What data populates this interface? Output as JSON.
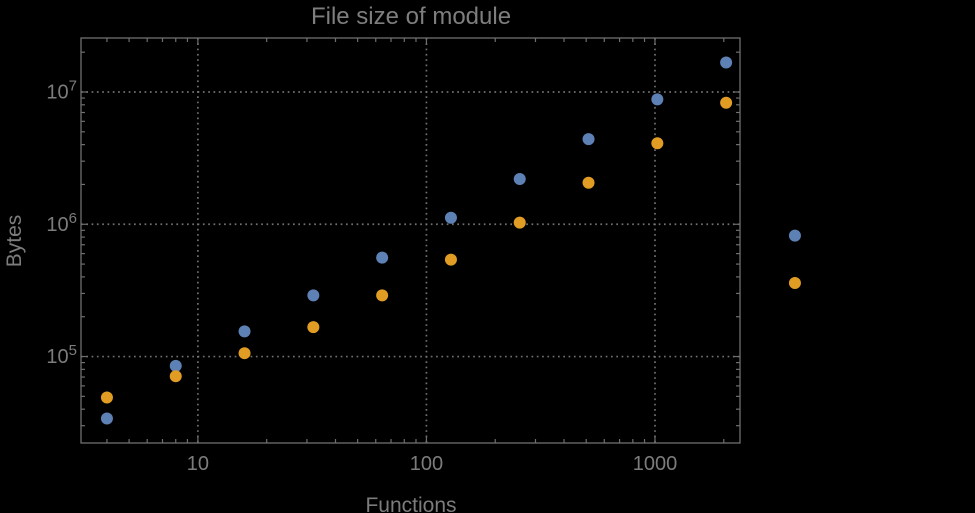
{
  "colors": {
    "background": "#000000",
    "frame": "#6f6f6f",
    "grid": "#7d7d7d",
    "tick_label": "#7c7c7c",
    "title_text": "#7e7e7e",
    "series_blue": "#5e81b5",
    "series_orange": "#e19c24"
  },
  "chart_data": {
    "type": "scatter",
    "title": "File size of module",
    "xlabel": "Functions",
    "ylabel": "Bytes",
    "xscale": "log",
    "yscale": "log",
    "xlim": [
      3.08,
      2355
    ],
    "ylim": [
      22200,
      25600000
    ],
    "grid": "dotted",
    "legend": "none",
    "marker_radius": 6,
    "x_ticks": {
      "major": [
        10,
        100,
        1000
      ],
      "major_labels": [
        "10",
        "100",
        "1000"
      ],
      "minor": [
        4,
        5,
        6,
        7,
        8,
        9,
        20,
        30,
        40,
        50,
        60,
        70,
        80,
        90,
        200,
        300,
        400,
        500,
        600,
        700,
        800,
        900,
        2000
      ]
    },
    "y_ticks": {
      "major": [
        100000,
        1000000,
        10000000
      ],
      "major_labels": [
        {
          "base": "10",
          "exp": "5"
        },
        {
          "base": "10",
          "exp": "6"
        },
        {
          "base": "10",
          "exp": "7"
        }
      ],
      "minor": [
        30000,
        40000,
        50000,
        60000,
        70000,
        80000,
        90000,
        200000,
        300000,
        400000,
        500000,
        600000,
        700000,
        800000,
        900000,
        2000000,
        3000000,
        4000000,
        5000000,
        6000000,
        7000000,
        8000000,
        9000000,
        20000000
      ]
    },
    "series": [
      {
        "name": "series-1-blue",
        "color": "#5e81b5",
        "points": [
          [
            4,
            34000
          ],
          [
            8,
            85000
          ],
          [
            16,
            155000
          ],
          [
            32,
            290000
          ],
          [
            64,
            560000
          ],
          [
            128,
            1120000
          ],
          [
            256,
            2200000
          ],
          [
            512,
            4400000
          ],
          [
            1024,
            8800000
          ],
          [
            2048,
            16700000
          ],
          [
            4096,
            820000
          ]
        ]
      },
      {
        "name": "series-2-orange",
        "color": "#e19c24",
        "points": [
          [
            4,
            49000
          ],
          [
            8,
            71000
          ],
          [
            16,
            106000
          ],
          [
            32,
            167000
          ],
          [
            64,
            290000
          ],
          [
            128,
            540000
          ],
          [
            256,
            1030000
          ],
          [
            512,
            2060000
          ],
          [
            1024,
            4100000
          ],
          [
            2048,
            8300000
          ],
          [
            4096,
            360000
          ]
        ]
      }
    ]
  }
}
